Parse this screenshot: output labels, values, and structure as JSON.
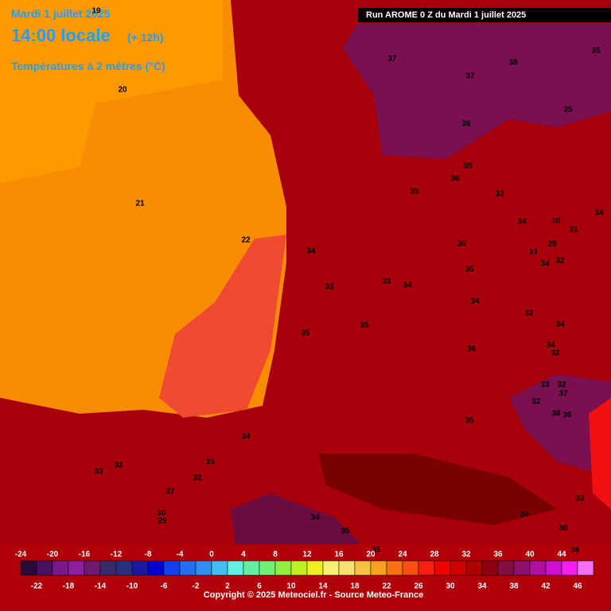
{
  "header": {
    "date": "Mardi 1 juillet 2025",
    "time": "14:00 locale",
    "offset": "(+ 12h)",
    "field": "Températures à 2 mètres (°C)",
    "run": "Run AROME 0 Z du Mardi 1 juillet 2025"
  },
  "map": {
    "labels": [
      19,
      20,
      21,
      22,
      37,
      38,
      37,
      35,
      35,
      36,
      35,
      36,
      35,
      32,
      34,
      30,
      34,
      28,
      31,
      33,
      34,
      32,
      36,
      34,
      33,
      33,
      34,
      36,
      34,
      35,
      32,
      34,
      35,
      36,
      34,
      32,
      33,
      32,
      37,
      38,
      36,
      35,
      32,
      34,
      32,
      33,
      35,
      32,
      37,
      30,
      29,
      24,
      36,
      35,
      34,
      35,
      36,
      33
    ],
    "scale": {
      "ticks": [
        -24,
        -22,
        -20,
        -18,
        -16,
        -14,
        -12,
        -10,
        -8,
        -6,
        -4,
        -2,
        0,
        2,
        4,
        6,
        8,
        10,
        12,
        14,
        16,
        18,
        20,
        22,
        24,
        26,
        28,
        30,
        32,
        34,
        36,
        38,
        40,
        42,
        44,
        46
      ],
      "colors": [
        "#2a0a3a",
        "#4a1060",
        "#7a1a8a",
        "#8e1ea0",
        "#6e1a6e",
        "#3a2a6a",
        "#2a3080",
        "#1a1aa0",
        "#0000d0",
        "#1040f0",
        "#2070f0",
        "#3090f0",
        "#40c0f0",
        "#60f0e0",
        "#60f0a0",
        "#70f070",
        "#90f040",
        "#c0f020",
        "#f0f020",
        "#f8f070",
        "#f8e070",
        "#f8c040",
        "#f8a020",
        "#f87010",
        "#f85010",
        "#f82010",
        "#f00000",
        "#d00000",
        "#b00000",
        "#900010",
        "#801040",
        "#901070",
        "#b010a0",
        "#d010d0",
        "#f020f0",
        "#f070f0"
      ]
    }
  },
  "footer": {
    "copyright": "Copyright © 2025 Meteociel.fr - Source Meteo-France"
  }
}
